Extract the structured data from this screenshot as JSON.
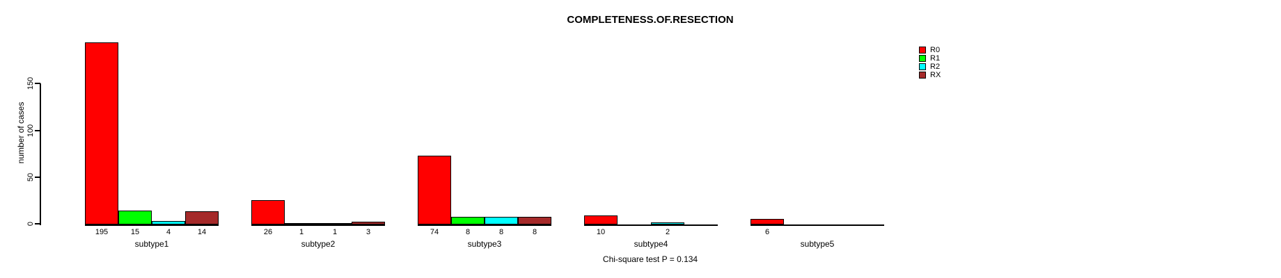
{
  "chart_data": {
    "type": "bar",
    "title": "COMPLETENESS.OF.RESECTION",
    "ylabel": "number of cases",
    "xlabel": "",
    "categories": [
      "subtype1",
      "subtype2",
      "subtype3",
      "subtype4",
      "subtype5"
    ],
    "series": [
      {
        "name": "R0",
        "color": "#FF0000",
        "values": [
          195,
          26,
          74,
          10,
          6
        ]
      },
      {
        "name": "R1",
        "color": "#00FF00",
        "values": [
          15,
          1,
          8,
          0,
          0
        ]
      },
      {
        "name": "R2",
        "color": "#00FFFF",
        "values": [
          4,
          1,
          8,
          2,
          0
        ]
      },
      {
        "name": "RX",
        "color": "#A52A2A",
        "values": [
          14,
          3,
          8,
          0,
          0
        ]
      }
    ],
    "bar_value_labels_nonzero_only": true,
    "yticks": [
      0,
      50,
      100,
      150
    ],
    "ylim": [
      0,
      200
    ],
    "grid": false,
    "legend_position": "top-right",
    "annotation": "Chi-square test P = 0.134"
  }
}
